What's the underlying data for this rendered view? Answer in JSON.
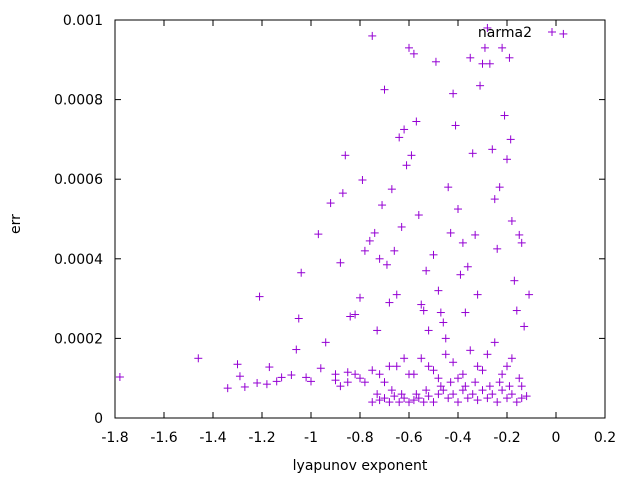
{
  "chart_data": {
    "type": "scatter",
    "title": "",
    "xlabel": "lyapunov exponent",
    "ylabel": "err",
    "xlim": [
      -1.8,
      0.2
    ],
    "ylim": [
      0,
      0.001
    ],
    "xticks": [
      -1.8,
      -1.6,
      -1.4,
      -1.2,
      -1.0,
      -0.8,
      -0.6,
      -0.4,
      -0.2,
      0,
      0.2
    ],
    "xtick_labels": [
      "-1.8",
      "-1.6",
      "-1.4",
      "-1.2",
      "-1",
      "-0.8",
      "-0.6",
      "-0.4",
      "-0.2",
      "0",
      "0.2"
    ],
    "yticks": [
      0,
      0.0002,
      0.0004,
      0.0006,
      0.0008,
      0.001
    ],
    "ytick_labels": [
      "0",
      "0.0002",
      "0.0004",
      "0.0006",
      "0.0008",
      "0.001"
    ],
    "grid": false,
    "legend_position": "top-right",
    "marker": "plus",
    "color": "#9400d3",
    "series": [
      {
        "name": "narma2",
        "points": [
          [
            -1.78,
            0.000103
          ],
          [
            -1.46,
            0.00015
          ],
          [
            -1.34,
            7.5e-05
          ],
          [
            -1.3,
            0.000135
          ],
          [
            -1.29,
            0.000105
          ],
          [
            -1.27,
            7.8e-05
          ],
          [
            -1.22,
            8.8e-05
          ],
          [
            -1.21,
            0.000305
          ],
          [
            -1.18,
            8.5e-05
          ],
          [
            -1.17,
            0.000128
          ],
          [
            -1.14,
            9.2e-05
          ],
          [
            -1.12,
            0.000102
          ],
          [
            -1.08,
            0.000108
          ],
          [
            -1.06,
            0.000172
          ],
          [
            -1.05,
            0.00025
          ],
          [
            -1.04,
            0.000365
          ],
          [
            -1.02,
            0.000102
          ],
          [
            -1.0,
            9.2e-05
          ],
          [
            -0.97,
            0.000462
          ],
          [
            -0.96,
            0.000125
          ],
          [
            -0.94,
            0.00019
          ],
          [
            -0.92,
            0.00054
          ],
          [
            -0.9,
            0.00011
          ],
          [
            -0.88,
            0.00039
          ],
          [
            -0.87,
            0.000565
          ],
          [
            -0.86,
            0.00066
          ],
          [
            -0.85,
            0.000115
          ],
          [
            -0.84,
            0.000255
          ],
          [
            -0.82,
            0.00026
          ],
          [
            -0.8,
            0.000302
          ],
          [
            -0.79,
            0.000598
          ],
          [
            -0.78,
            0.00042
          ],
          [
            -0.76,
            0.000445
          ],
          [
            -0.75,
            0.00096
          ],
          [
            -0.74,
            0.000465
          ],
          [
            -0.73,
            0.00022
          ],
          [
            -0.72,
            0.0004
          ],
          [
            -0.71,
            0.000535
          ],
          [
            -0.7,
            0.000825
          ],
          [
            -0.69,
            0.000385
          ],
          [
            -0.68,
            0.00029
          ],
          [
            -0.67,
            0.000575
          ],
          [
            -0.66,
            0.00042
          ],
          [
            -0.65,
            0.00031
          ],
          [
            -0.64,
            0.000705
          ],
          [
            -0.63,
            0.00048
          ],
          [
            -0.62,
            0.000725
          ],
          [
            -0.61,
            0.000635
          ],
          [
            -0.6,
            0.00093
          ],
          [
            -0.59,
            0.00066
          ],
          [
            -0.58,
            0.000915
          ],
          [
            -0.57,
            0.000745
          ],
          [
            -0.56,
            0.00051
          ],
          [
            -0.55,
            0.000285
          ],
          [
            -0.54,
            0.00027
          ],
          [
            -0.53,
            0.00037
          ],
          [
            -0.52,
            0.00022
          ],
          [
            -0.5,
            0.00041
          ],
          [
            -0.49,
            0.000895
          ],
          [
            -0.48,
            0.00032
          ],
          [
            -0.47,
            0.000265
          ],
          [
            -0.46,
            0.00024
          ],
          [
            -0.45,
            0.0002
          ],
          [
            -0.44,
            0.00058
          ],
          [
            -0.43,
            0.000465
          ],
          [
            -0.42,
            0.000815
          ],
          [
            -0.41,
            0.000735
          ],
          [
            -0.4,
            0.000525
          ],
          [
            -0.39,
            0.00036
          ],
          [
            -0.38,
            0.00044
          ],
          [
            -0.37,
            0.000265
          ],
          [
            -0.36,
            0.00038
          ],
          [
            -0.35,
            0.000905
          ],
          [
            -0.34,
            0.000665
          ],
          [
            -0.33,
            0.00046
          ],
          [
            -0.32,
            0.00031
          ],
          [
            -0.31,
            0.000835
          ],
          [
            -0.3,
            0.00089
          ],
          [
            -0.29,
            0.00093
          ],
          [
            -0.28,
            0.00098
          ],
          [
            -0.27,
            0.00089
          ],
          [
            -0.26,
            0.000675
          ],
          [
            -0.25,
            0.00055
          ],
          [
            -0.24,
            0.000425
          ],
          [
            -0.23,
            0.00058
          ],
          [
            -0.22,
            0.00093
          ],
          [
            -0.21,
            0.00076
          ],
          [
            -0.2,
            0.00065
          ],
          [
            -0.19,
            0.000905
          ],
          [
            -0.185,
            0.0007
          ],
          [
            -0.18,
            0.000495
          ],
          [
            -0.17,
            0.000345
          ],
          [
            -0.16,
            0.00027
          ],
          [
            -0.15,
            0.00046
          ],
          [
            -0.14,
            0.00044
          ],
          [
            -0.13,
            0.00023
          ],
          [
            -0.12,
            5.5e-05
          ],
          [
            -0.11,
            0.00031
          ],
          [
            0.03,
            0.000965
          ],
          [
            -0.9,
            9.5e-05
          ],
          [
            -0.85,
            9e-05
          ],
          [
            -0.8,
            0.0001
          ],
          [
            -0.75,
            0.00012
          ],
          [
            -0.7,
            9e-05
          ],
          [
            -0.65,
            0.00013
          ],
          [
            -0.6,
            0.00011
          ],
          [
            -0.55,
            0.00015
          ],
          [
            -0.5,
            0.00012
          ],
          [
            -0.45,
            0.00016
          ],
          [
            -0.4,
            0.0001
          ],
          [
            -0.35,
            0.00017
          ],
          [
            -0.3,
            0.00012
          ],
          [
            -0.25,
            0.00019
          ],
          [
            -0.2,
            0.00013
          ],
          [
            -0.15,
            0.0001
          ],
          [
            -0.88,
            8e-05
          ],
          [
            -0.82,
            0.00011
          ],
          [
            -0.78,
            9e-05
          ],
          [
            -0.72,
            0.00011
          ],
          [
            -0.68,
            0.00013
          ],
          [
            -0.62,
            0.00015
          ],
          [
            -0.58,
            0.00011
          ],
          [
            -0.52,
            0.00013
          ],
          [
            -0.48,
            0.0001
          ],
          [
            -0.42,
            0.00014
          ],
          [
            -0.38,
            0.00011
          ],
          [
            -0.32,
            0.00013
          ],
          [
            -0.28,
            0.00016
          ],
          [
            -0.22,
            0.00011
          ],
          [
            -0.18,
            0.00015
          ],
          [
            -0.14,
            8e-05
          ],
          [
            -0.75,
            4e-05
          ],
          [
            -0.72,
            4.5e-05
          ],
          [
            -0.7,
            5e-05
          ],
          [
            -0.68,
            4e-05
          ],
          [
            -0.66,
            5.5e-05
          ],
          [
            -0.64,
            4e-05
          ],
          [
            -0.62,
            5e-05
          ],
          [
            -0.6,
            4e-05
          ],
          [
            -0.58,
            4.5e-05
          ],
          [
            -0.56,
            5e-05
          ],
          [
            -0.54,
            4e-05
          ],
          [
            -0.52,
            5.5e-05
          ],
          [
            -0.5,
            4e-05
          ],
          [
            -0.48,
            6e-05
          ],
          [
            -0.46,
            7e-05
          ],
          [
            -0.44,
            5e-05
          ],
          [
            -0.42,
            6e-05
          ],
          [
            -0.4,
            4e-05
          ],
          [
            -0.38,
            7e-05
          ],
          [
            -0.36,
            5e-05
          ],
          [
            -0.34,
            6e-05
          ],
          [
            -0.32,
            4.5e-05
          ],
          [
            -0.3,
            7e-05
          ],
          [
            -0.28,
            5e-05
          ],
          [
            -0.26,
            6e-05
          ],
          [
            -0.24,
            4e-05
          ],
          [
            -0.22,
            7e-05
          ],
          [
            -0.2,
            5e-05
          ],
          [
            -0.18,
            6e-05
          ],
          [
            -0.16,
            4e-05
          ],
          [
            -0.14,
            5e-05
          ],
          [
            -0.47,
            8e-05
          ],
          [
            -0.43,
            9e-05
          ],
          [
            -0.37,
            8e-05
          ],
          [
            -0.33,
            9e-05
          ],
          [
            -0.27,
            8e-05
          ],
          [
            -0.23,
            9e-05
          ],
          [
            -0.19,
            8e-05
          ],
          [
            -0.53,
            7e-05
          ],
          [
            -0.57,
            6e-05
          ],
          [
            -0.63,
            6e-05
          ],
          [
            -0.67,
            7e-05
          ],
          [
            -0.73,
            6e-05
          ]
        ]
      }
    ]
  }
}
